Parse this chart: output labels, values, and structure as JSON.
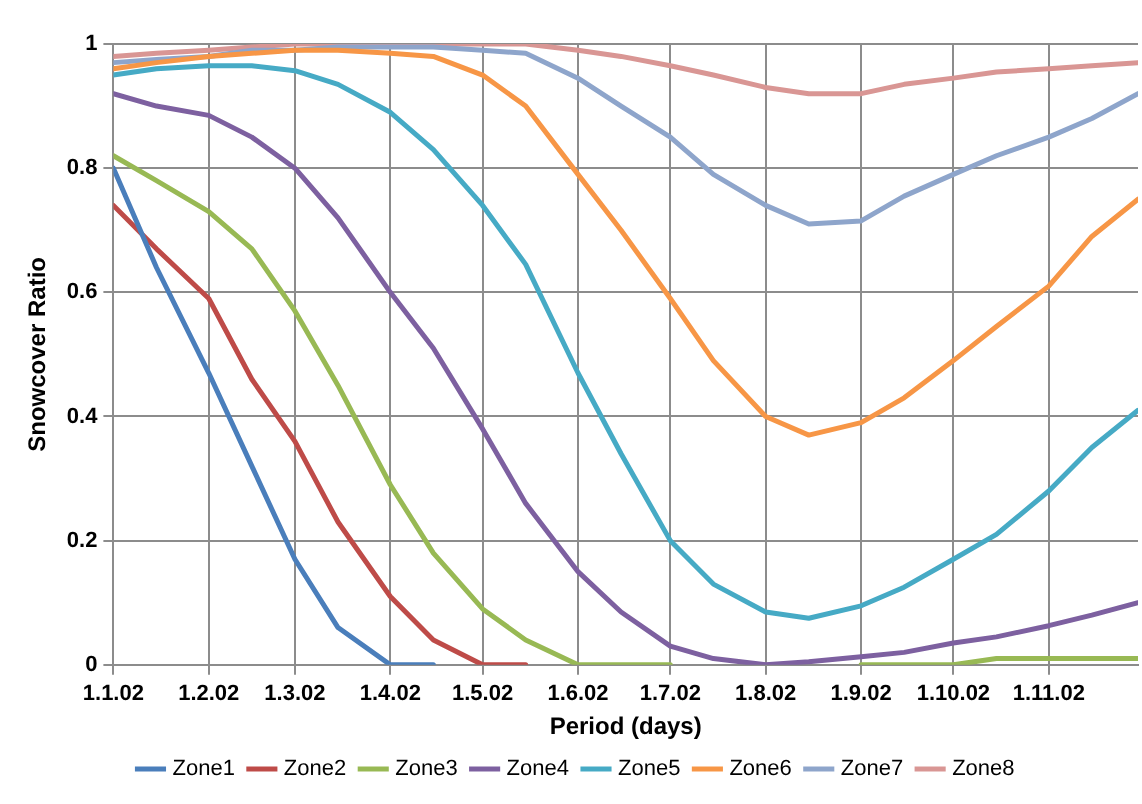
{
  "chart_data": {
    "type": "line",
    "xlabel": "Period (days)",
    "ylabel": "Snowcover Ratio",
    "x": [
      "2002-01-01",
      "2002-01-15",
      "2002-02-01",
      "2002-02-15",
      "2002-03-01",
      "2002-03-15",
      "2002-04-01",
      "2002-04-15",
      "2002-05-01",
      "2002-05-15",
      "2002-06-01",
      "2002-06-15",
      "2002-07-01",
      "2002-07-15",
      "2002-08-01",
      "2002-08-15",
      "2002-09-01",
      "2002-09-15",
      "2002-10-01",
      "2002-10-15",
      "2002-11-01",
      "2002-11-15",
      "2002-11-30"
    ],
    "series": [
      {
        "name": "Zone1",
        "color": "#4a7ebb",
        "values": [
          0.8,
          0.64,
          0.47,
          0.32,
          0.17,
          0.06,
          0,
          0,
          null,
          null,
          null,
          null,
          null,
          null,
          null,
          null,
          null,
          null,
          null,
          null,
          null,
          null,
          null
        ]
      },
      {
        "name": "Zone2",
        "color": "#be4b48",
        "values": [
          0.74,
          0.67,
          0.59,
          0.46,
          0.36,
          0.23,
          0.11,
          0.04,
          0,
          0,
          null,
          null,
          null,
          null,
          null,
          null,
          null,
          null,
          null,
          null,
          null,
          null,
          null
        ]
      },
      {
        "name": "Zone3",
        "color": "#98b954",
        "values": [
          0.82,
          0.78,
          0.73,
          0.67,
          0.57,
          0.45,
          0.29,
          0.18,
          0.09,
          0.04,
          0,
          0,
          0,
          null,
          null,
          null,
          0,
          0,
          0,
          0.01,
          0.01,
          0.01,
          0.01
        ]
      },
      {
        "name": "Zone4",
        "color": "#7d60a0",
        "values": [
          0.92,
          0.9,
          0.885,
          0.85,
          0.8,
          0.72,
          0.6,
          0.51,
          0.38,
          0.26,
          0.15,
          0.085,
          0.03,
          0.01,
          0,
          0.005,
          0.013,
          0.02,
          0.035,
          0.045,
          0.063,
          0.08,
          0.1
        ]
      },
      {
        "name": "Zone5",
        "color": "#46aac5",
        "values": [
          0.95,
          0.96,
          0.965,
          0.965,
          0.957,
          0.935,
          0.89,
          0.83,
          0.74,
          0.645,
          0.47,
          0.34,
          0.2,
          0.13,
          0.085,
          0.075,
          0.095,
          0.125,
          0.17,
          0.21,
          0.28,
          0.35,
          0.41
        ]
      },
      {
        "name": "Zone6",
        "color": "#f79646",
        "values": [
          0.96,
          0.97,
          0.98,
          0.985,
          0.99,
          0.99,
          0.985,
          0.98,
          0.95,
          0.9,
          0.79,
          0.7,
          0.59,
          0.49,
          0.4,
          0.37,
          0.39,
          0.43,
          0.49,
          0.545,
          0.61,
          0.69,
          0.75
        ]
      },
      {
        "name": "Zone7",
        "color": "#8ea5cb",
        "values": [
          0.97,
          0.975,
          0.98,
          0.99,
          0.99,
          0.995,
          0.995,
          0.995,
          0.99,
          0.985,
          0.945,
          0.9,
          0.85,
          0.79,
          0.74,
          0.71,
          0.715,
          0.755,
          0.79,
          0.82,
          0.85,
          0.88,
          0.92
        ]
      },
      {
        "name": "Zone8",
        "color": "#d99694",
        "values": [
          0.98,
          0.985,
          0.99,
          0.995,
          1,
          1,
          1,
          1,
          1,
          1,
          0.99,
          0.98,
          0.965,
          0.95,
          0.93,
          0.92,
          0.92,
          0.935,
          0.945,
          0.955,
          0.96,
          0.965,
          0.97
        ]
      }
    ],
    "xlim": [
      "2002-01-01",
      "2002-11-30"
    ],
    "xticks": [
      {
        "value": "2002-01-01",
        "label": "1.1.02"
      },
      {
        "value": "2002-02-01",
        "label": "1.2.02"
      },
      {
        "value": "2002-03-01",
        "label": "1.3.02"
      },
      {
        "value": "2002-04-01",
        "label": "1.4.02"
      },
      {
        "value": "2002-05-01",
        "label": "1.5.02"
      },
      {
        "value": "2002-06-01",
        "label": "1.6.02"
      },
      {
        "value": "2002-07-01",
        "label": "1.7.02"
      },
      {
        "value": "2002-08-01",
        "label": "1.8.02"
      },
      {
        "value": "2002-09-01",
        "label": "1.9.02"
      },
      {
        "value": "2002-10-01",
        "label": "1.10.02"
      },
      {
        "value": "2002-11-01",
        "label": "1.11.02"
      }
    ],
    "ylim": [
      0,
      1
    ],
    "yticks": [
      0,
      0.2,
      0.4,
      0.6,
      0.8,
      1
    ],
    "grid": true,
    "legend": "bottom",
    "marker": "none",
    "line_style": "solid"
  }
}
